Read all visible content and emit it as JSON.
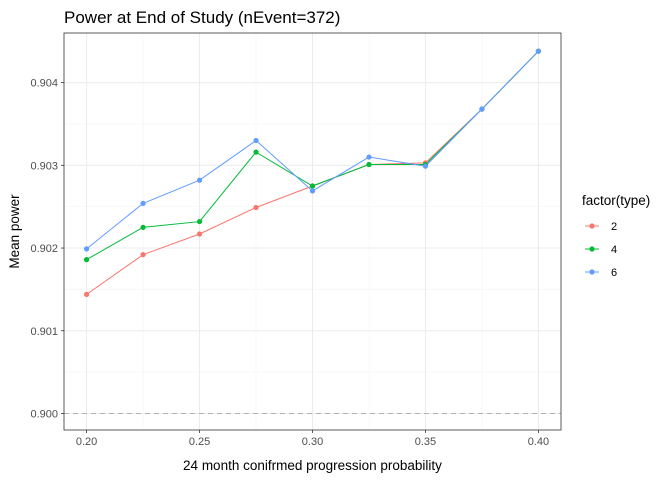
{
  "chart_data": {
    "type": "line",
    "title": "Power at End of Study (nEvent=372)",
    "xlabel": "24 month conifrmed progression probability",
    "ylabel": "Mean power",
    "xlim": [
      0.19,
      0.41
    ],
    "ylim": [
      0.8998,
      0.9046
    ],
    "x_ticks": [
      "0.20",
      "0.25",
      "0.30",
      "0.35",
      "0.40"
    ],
    "x_tick_values": [
      0.2,
      0.25,
      0.3,
      0.35,
      0.4
    ],
    "y_ticks": [
      "0.900",
      "0.901",
      "0.902",
      "0.903",
      "0.904"
    ],
    "y_tick_values": [
      0.9,
      0.901,
      0.902,
      0.903,
      0.904
    ],
    "reference_line_y": 0.9,
    "grid": true,
    "legend": {
      "title": "factor(type)",
      "position": "right"
    },
    "series": [
      {
        "name": "2",
        "color": "#F8766D",
        "x": [
          0.2,
          0.225,
          0.25,
          0.275,
          0.3,
          0.325,
          0.35,
          0.375,
          0.4
        ],
        "y": [
          0.90144,
          0.90192,
          0.90217,
          0.90249,
          0.90275,
          0.90301,
          0.90303,
          0.90368,
          0.90438
        ]
      },
      {
        "name": "4",
        "color": "#00BA38",
        "x": [
          0.2,
          0.225,
          0.25,
          0.275,
          0.3,
          0.325,
          0.35,
          0.375,
          0.4
        ],
        "y": [
          0.90186,
          0.90225,
          0.90232,
          0.90316,
          0.90275,
          0.90301,
          0.90301,
          0.90368,
          0.90438
        ]
      },
      {
        "name": "6",
        "color": "#619CFF",
        "x": [
          0.2,
          0.225,
          0.25,
          0.275,
          0.3,
          0.325,
          0.35,
          0.375,
          0.4
        ],
        "y": [
          0.90199,
          0.90254,
          0.90282,
          0.9033,
          0.90269,
          0.9031,
          0.90299,
          0.90368,
          0.90438
        ]
      }
    ]
  }
}
